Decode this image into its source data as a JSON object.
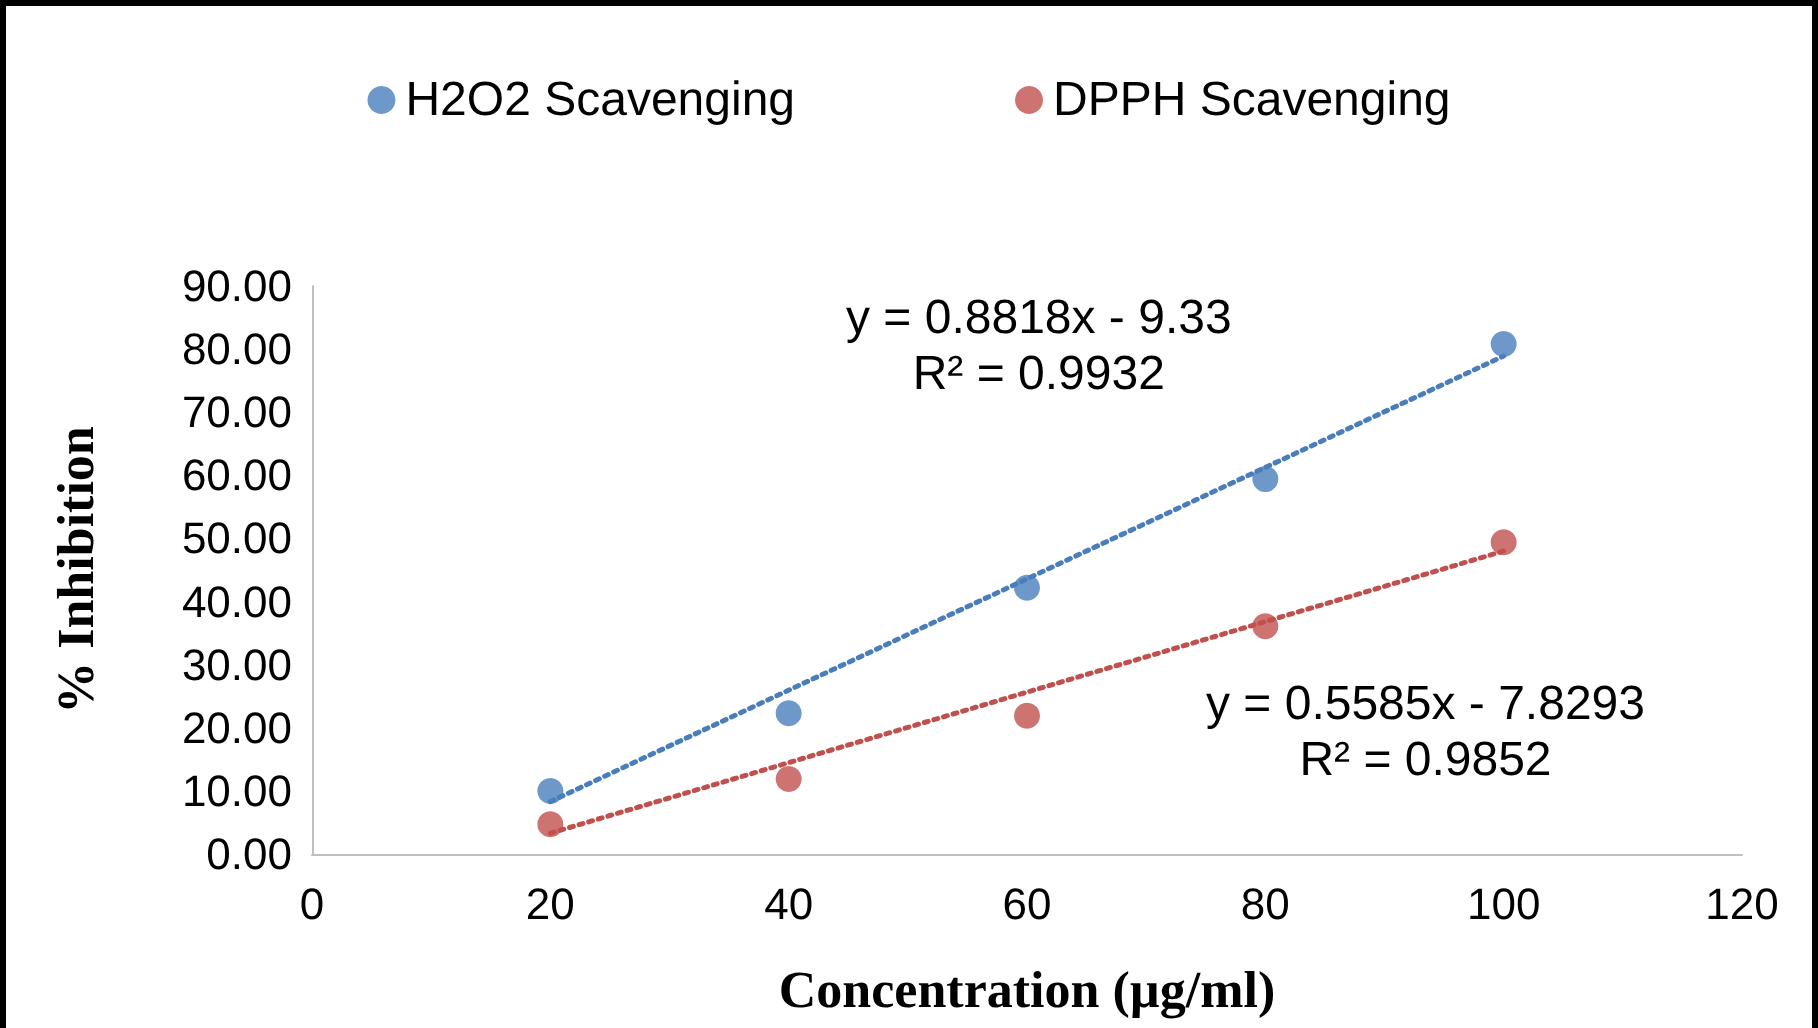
{
  "chart_data": {
    "type": "scatter",
    "xlabel": "Concentration (µg/ml)",
    "ylabel": "% Inhibition",
    "series": [
      {
        "name": "H2O2 Scavenging",
        "color": "#4a7ebb",
        "x": [
          20,
          40,
          60,
          80,
          100
        ],
        "values": [
          10.0,
          22.3,
          42.2,
          59.4,
          80.8
        ]
      },
      {
        "name": "DPPH Scavenging",
        "color": "#c0504d",
        "x": [
          20,
          40,
          60,
          80,
          100
        ],
        "values": [
          4.7,
          11.9,
          21.9,
          36.1,
          49.4
        ]
      },
      {
        "type": "line",
        "color": "#4a7ebb",
        "x": [
          20,
          100
        ],
        "values": [
          8.3,
          78.9
        ],
        "line_style": "dotted",
        "marker": "none"
      },
      {
        "type": "line",
        "color": "#c0504d",
        "x": [
          20,
          100
        ],
        "values": [
          3.3,
          48.0
        ],
        "line_style": "dotted",
        "marker": "none"
      }
    ],
    "annotations": [
      "y = 0.8818x - 9.33\nR² = 0.9932",
      "y = 0.5585x - 7.8293\nR² = 0.9852"
    ],
    "xlim": [
      0,
      120
    ],
    "xticks": [
      0,
      20,
      40,
      60,
      80,
      100,
      120
    ],
    "ylim": [
      0,
      90
    ],
    "yticks": [
      {
        "value": 0,
        "label": "0.00"
      },
      {
        "value": 10,
        "label": "10.00"
      },
      {
        "value": 20,
        "label": "20.00"
      },
      {
        "value": 30,
        "label": "30.00"
      },
      {
        "value": 40,
        "label": "40.00"
      },
      {
        "value": 50,
        "label": "50.00"
      },
      {
        "value": 60,
        "label": "60.00"
      },
      {
        "value": 70,
        "label": "70.00"
      },
      {
        "value": 80,
        "label": "80.00"
      },
      {
        "value": 90,
        "label": "90.00"
      }
    ],
    "grid": false,
    "legend": "top",
    "marker": "circle"
  }
}
